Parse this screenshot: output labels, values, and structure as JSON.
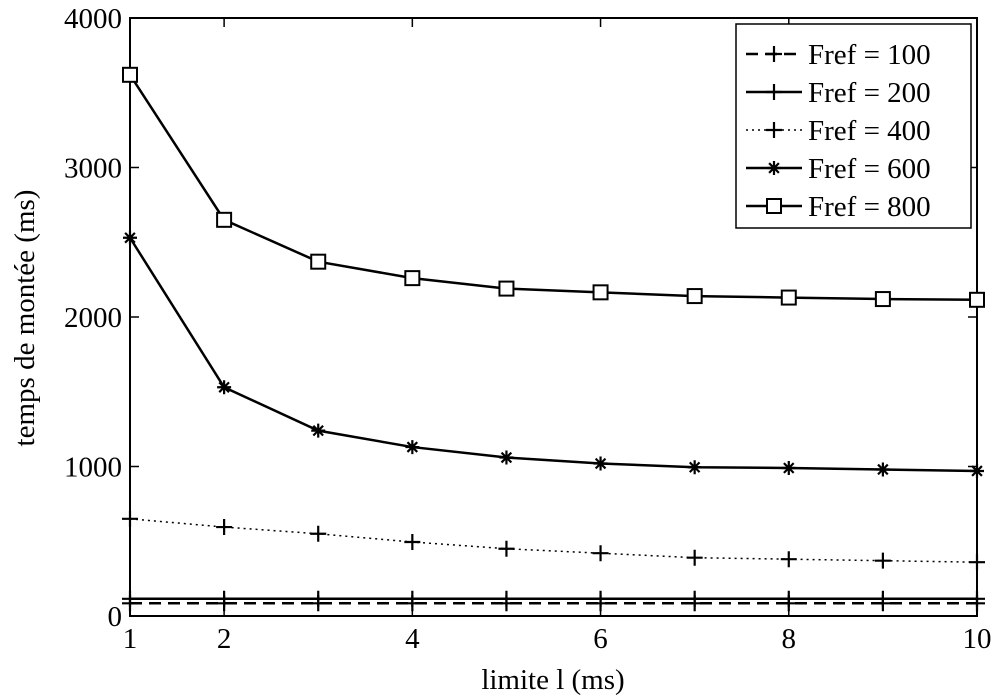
{
  "chart_data": {
    "type": "line",
    "title": "",
    "xlabel": "limite l (ms)",
    "ylabel": "temps de montée (ms)",
    "xlim": [
      1,
      10
    ],
    "ylim": [
      0,
      4000
    ],
    "xticks": [
      1,
      2,
      4,
      6,
      8,
      10
    ],
    "yticks": [
      0,
      1000,
      2000,
      3000,
      4000
    ],
    "grid": false,
    "legend_position": "top-right",
    "x": [
      1,
      2,
      3,
      4,
      5,
      6,
      7,
      8,
      9,
      10
    ],
    "series": [
      {
        "name": "Fref = 100",
        "line": "dashed",
        "marker": "plus",
        "values": [
          85,
          85,
          85,
          85,
          85,
          85,
          85,
          85,
          85,
          85
        ]
      },
      {
        "name": "Fref = 200",
        "line": "solid",
        "marker": "plus",
        "values": [
          115,
          115,
          115,
          115,
          115,
          115,
          115,
          115,
          115,
          115
        ]
      },
      {
        "name": "Fref = 400",
        "line": "dotted",
        "marker": "plus",
        "values": [
          650,
          595,
          550,
          495,
          450,
          420,
          390,
          380,
          370,
          360
        ]
      },
      {
        "name": "Fref = 600",
        "line": "solid",
        "marker": "asterisk",
        "values": [
          2530,
          1530,
          1240,
          1130,
          1060,
          1020,
          995,
          990,
          980,
          970
        ]
      },
      {
        "name": "Fref = 800",
        "line": "solid",
        "marker": "square",
        "values": [
          3620,
          2650,
          2370,
          2260,
          2190,
          2165,
          2140,
          2130,
          2120,
          2115
        ]
      }
    ]
  }
}
